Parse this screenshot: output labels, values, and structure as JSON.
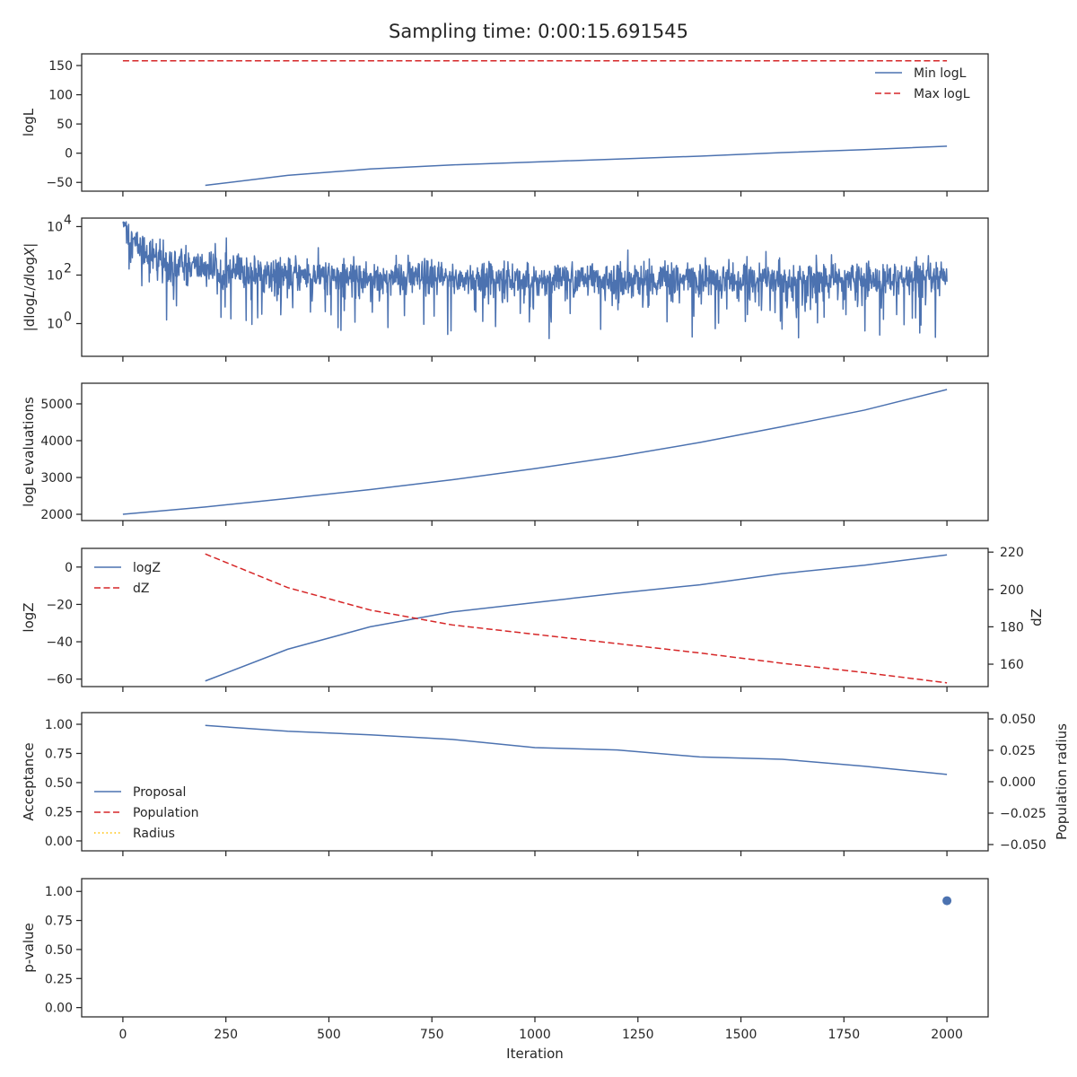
{
  "title": "Sampling time: 0:00:15.691545",
  "colors": {
    "blue": "#4c72b0",
    "red": "#d62728",
    "gold": "#ffbf00",
    "axis": "#262626"
  },
  "chart_data": [
    {
      "type": "line",
      "ylabel": "logL",
      "xlim": [
        -100,
        2100
      ],
      "ylim": [
        -65,
        170
      ],
      "yticks": [
        -50,
        0,
        50,
        100,
        150
      ],
      "ytick_labels": [
        "−50",
        "0",
        "50",
        "100",
        "150"
      ],
      "legend": "top-right",
      "series": [
        {
          "name": "Min logL",
          "style": "solid",
          "color": "#4c72b0",
          "x": [
            200,
            400,
            600,
            800,
            1000,
            1200,
            1400,
            1600,
            1800,
            2000
          ],
          "y": [
            -55,
            -38,
            -27,
            -20,
            -15,
            -10,
            -5,
            1,
            6,
            12
          ]
        },
        {
          "name": "Max logL",
          "style": "dashed",
          "color": "#d62728",
          "x": [
            0,
            250,
            500,
            750,
            1000,
            1250,
            1500,
            1750,
            2000
          ],
          "y": [
            158,
            158,
            158,
            158,
            158,
            158,
            158,
            158,
            158
          ]
        }
      ]
    },
    {
      "type": "line",
      "ylabel": "|dlogL/dlogX|",
      "yscale": "log",
      "xlim": [
        -100,
        2100
      ],
      "ylim_log10": [
        -1.35,
        4.35
      ],
      "yticks_log10": [
        0,
        2,
        4
      ],
      "ytick_labels": [
        "10",
        "10",
        "10"
      ],
      "ytick_exponents": [
        "0",
        "2",
        "4"
      ],
      "series": [
        {
          "name": "",
          "style": "solid",
          "color": "#4c72b0",
          "noisy": true,
          "x_range": [
            0,
            2000
          ],
          "n_points": 2000,
          "trend_log10": {
            "x": [
              0,
              20,
              100,
              300,
              600,
              1000,
              2000
            ],
            "y": [
              4.2,
              3.4,
              2.5,
              2.1,
              1.9,
              1.8,
              1.8
            ]
          },
          "min_log10": -1.0
        }
      ]
    },
    {
      "type": "line",
      "ylabel": "logL evaluations",
      "xlim": [
        -100,
        2100
      ],
      "ylim": [
        1830,
        5560
      ],
      "yticks": [
        2000,
        3000,
        4000,
        5000
      ],
      "ytick_labels": [
        "2000",
        "3000",
        "4000",
        "5000"
      ],
      "series": [
        {
          "name": "",
          "style": "solid",
          "color": "#4c72b0",
          "x": [
            0,
            200,
            400,
            600,
            800,
            1000,
            1200,
            1400,
            1600,
            1800,
            2000
          ],
          "y": [
            2000,
            2200,
            2430,
            2670,
            2940,
            3240,
            3570,
            3950,
            4380,
            4830,
            5390
          ]
        }
      ]
    },
    {
      "type": "line",
      "ylabel": "logZ",
      "ylabel_right": "dZ",
      "xlim": [
        -100,
        2100
      ],
      "ylim": [
        -64,
        10
      ],
      "ylim_right": [
        148,
        222
      ],
      "yticks": [
        -60,
        -40,
        -20,
        0
      ],
      "ytick_labels": [
        "−60",
        "−40",
        "−20",
        "0"
      ],
      "yticks_right": [
        160,
        180,
        200,
        220
      ],
      "ytick_labels_right": [
        "160",
        "180",
        "200",
        "220"
      ],
      "legend": "top-left",
      "series": [
        {
          "name": "logZ",
          "style": "solid",
          "color": "#4c72b0",
          "axis": "left",
          "x": [
            200,
            400,
            600,
            800,
            1000,
            1200,
            1400,
            1600,
            1800,
            2000
          ],
          "y": [
            -61,
            -44,
            -32,
            -24,
            -19,
            -14,
            -9.5,
            -3.5,
            1,
            6.5
          ]
        },
        {
          "name": "dZ",
          "style": "dashed",
          "color": "#d62728",
          "axis": "right",
          "x": [
            200,
            400,
            600,
            800,
            1000,
            1200,
            1400,
            1600,
            1800,
            2000
          ],
          "y": [
            219,
            201,
            189,
            181,
            176,
            171,
            166,
            160.5,
            155.5,
            150
          ]
        }
      ]
    },
    {
      "type": "line",
      "ylabel": "Acceptance",
      "ylabel_right": "Population radius",
      "xlim": [
        -100,
        2100
      ],
      "ylim": [
        -0.085,
        1.1
      ],
      "ylim_right": [
        -0.055,
        0.055
      ],
      "yticks": [
        0,
        0.25,
        0.5,
        0.75,
        1
      ],
      "ytick_labels": [
        "0.00",
        "0.25",
        "0.50",
        "0.75",
        "1.00"
      ],
      "yticks_right": [
        -0.05,
        -0.025,
        0,
        0.025,
        0.05
      ],
      "ytick_labels_right": [
        "−0.050",
        "−0.025",
        "0.000",
        "0.025",
        "0.050"
      ],
      "legend": "lower-left",
      "series": [
        {
          "name": "Proposal",
          "style": "solid",
          "color": "#4c72b0",
          "axis": "left",
          "x": [
            200,
            400,
            600,
            800,
            1000,
            1200,
            1400,
            1600,
            1800,
            2000
          ],
          "y": [
            0.99,
            0.94,
            0.91,
            0.87,
            0.8,
            0.78,
            0.72,
            0.7,
            0.64,
            0.57
          ]
        },
        {
          "name": "Population",
          "style": "dashed",
          "color": "#d62728",
          "axis": "right",
          "x": [],
          "y": []
        },
        {
          "name": "Radius",
          "style": "dotted",
          "color": "#ffbf00",
          "axis": "right",
          "x": [],
          "y": []
        }
      ]
    },
    {
      "type": "scatter",
      "ylabel": "p-value",
      "xlabel": "Iteration",
      "xlim": [
        -100,
        2100
      ],
      "ylim": [
        -0.08,
        1.11
      ],
      "yticks": [
        0,
        0.25,
        0.5,
        0.75,
        1
      ],
      "ytick_labels": [
        "0.00",
        "0.25",
        "0.50",
        "0.75",
        "1.00"
      ],
      "xticks": [
        0,
        250,
        500,
        750,
        1000,
        1250,
        1500,
        1750,
        2000
      ],
      "xtick_labels": [
        "0",
        "250",
        "500",
        "750",
        "1000",
        "1250",
        "1500",
        "1750",
        "2000"
      ],
      "series": [
        {
          "name": "",
          "color": "#4c72b0",
          "x": [
            2000
          ],
          "y": [
            0.92
          ]
        }
      ]
    }
  ]
}
